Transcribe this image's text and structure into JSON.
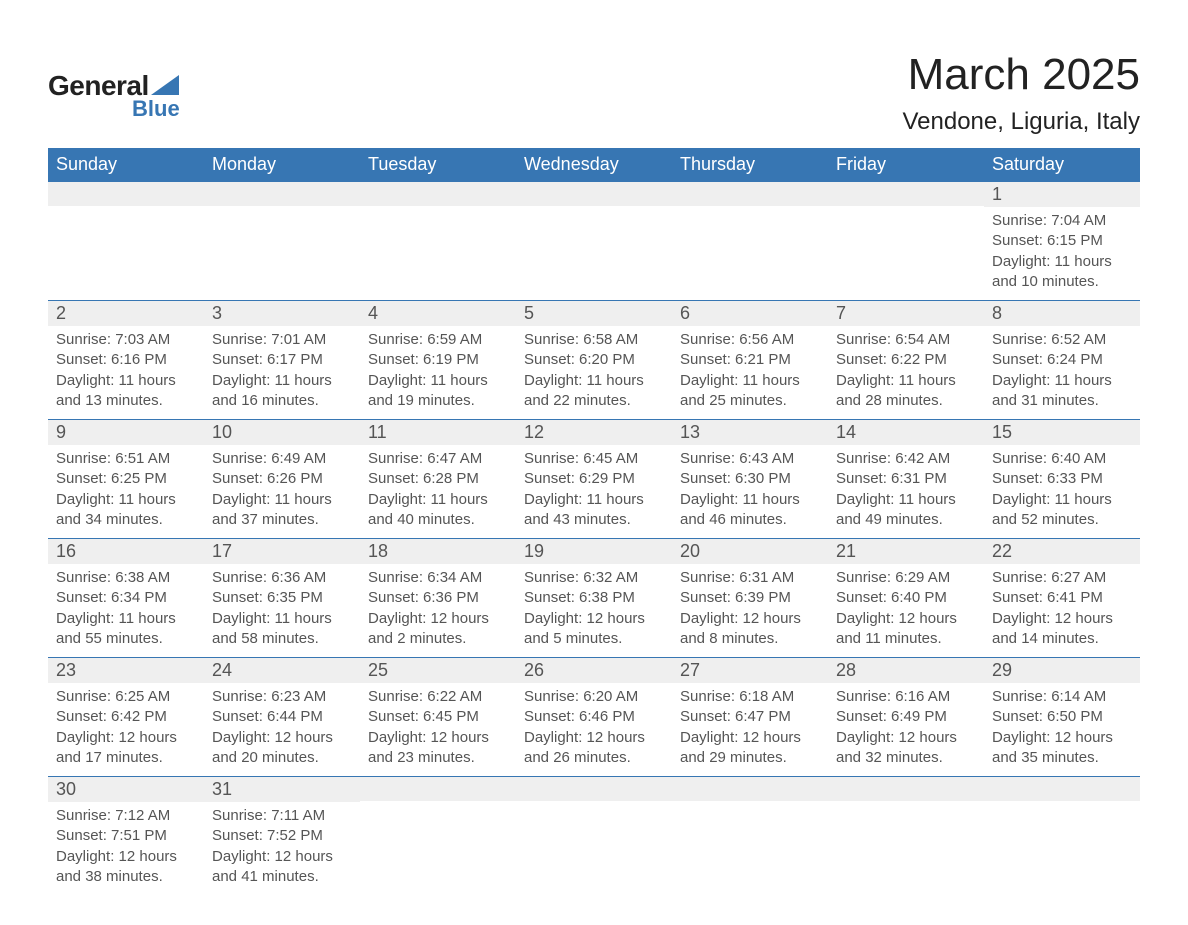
{
  "brand": {
    "general": "General",
    "blue": "Blue",
    "triangle_color": "#3776b3"
  },
  "title": "March 2025",
  "location": "Vendone, Liguria, Italy",
  "colors": {
    "header_bg": "#3776b3",
    "header_text": "#ffffff",
    "dayhead_bg": "#efefef",
    "text": "#555555",
    "row_border": "#3776b3",
    "page_bg": "#ffffff"
  },
  "typography": {
    "title_fontsize": 44,
    "location_fontsize": 24,
    "weekday_fontsize": 18,
    "daynum_fontsize": 18,
    "body_fontsize": 15
  },
  "weekdays": [
    "Sunday",
    "Monday",
    "Tuesday",
    "Wednesday",
    "Thursday",
    "Friday",
    "Saturday"
  ],
  "weeks": [
    [
      {
        "empty": true
      },
      {
        "empty": true
      },
      {
        "empty": true
      },
      {
        "empty": true
      },
      {
        "empty": true
      },
      {
        "empty": true
      },
      {
        "day": "1",
        "sunrise": "Sunrise: 7:04 AM",
        "sunset": "Sunset: 6:15 PM",
        "d1": "Daylight: 11 hours",
        "d2": "and 10 minutes."
      }
    ],
    [
      {
        "day": "2",
        "sunrise": "Sunrise: 7:03 AM",
        "sunset": "Sunset: 6:16 PM",
        "d1": "Daylight: 11 hours",
        "d2": "and 13 minutes."
      },
      {
        "day": "3",
        "sunrise": "Sunrise: 7:01 AM",
        "sunset": "Sunset: 6:17 PM",
        "d1": "Daylight: 11 hours",
        "d2": "and 16 minutes."
      },
      {
        "day": "4",
        "sunrise": "Sunrise: 6:59 AM",
        "sunset": "Sunset: 6:19 PM",
        "d1": "Daylight: 11 hours",
        "d2": "and 19 minutes."
      },
      {
        "day": "5",
        "sunrise": "Sunrise: 6:58 AM",
        "sunset": "Sunset: 6:20 PM",
        "d1": "Daylight: 11 hours",
        "d2": "and 22 minutes."
      },
      {
        "day": "6",
        "sunrise": "Sunrise: 6:56 AM",
        "sunset": "Sunset: 6:21 PM",
        "d1": "Daylight: 11 hours",
        "d2": "and 25 minutes."
      },
      {
        "day": "7",
        "sunrise": "Sunrise: 6:54 AM",
        "sunset": "Sunset: 6:22 PM",
        "d1": "Daylight: 11 hours",
        "d2": "and 28 minutes."
      },
      {
        "day": "8",
        "sunrise": "Sunrise: 6:52 AM",
        "sunset": "Sunset: 6:24 PM",
        "d1": "Daylight: 11 hours",
        "d2": "and 31 minutes."
      }
    ],
    [
      {
        "day": "9",
        "sunrise": "Sunrise: 6:51 AM",
        "sunset": "Sunset: 6:25 PM",
        "d1": "Daylight: 11 hours",
        "d2": "and 34 minutes."
      },
      {
        "day": "10",
        "sunrise": "Sunrise: 6:49 AM",
        "sunset": "Sunset: 6:26 PM",
        "d1": "Daylight: 11 hours",
        "d2": "and 37 minutes."
      },
      {
        "day": "11",
        "sunrise": "Sunrise: 6:47 AM",
        "sunset": "Sunset: 6:28 PM",
        "d1": "Daylight: 11 hours",
        "d2": "and 40 minutes."
      },
      {
        "day": "12",
        "sunrise": "Sunrise: 6:45 AM",
        "sunset": "Sunset: 6:29 PM",
        "d1": "Daylight: 11 hours",
        "d2": "and 43 minutes."
      },
      {
        "day": "13",
        "sunrise": "Sunrise: 6:43 AM",
        "sunset": "Sunset: 6:30 PM",
        "d1": "Daylight: 11 hours",
        "d2": "and 46 minutes."
      },
      {
        "day": "14",
        "sunrise": "Sunrise: 6:42 AM",
        "sunset": "Sunset: 6:31 PM",
        "d1": "Daylight: 11 hours",
        "d2": "and 49 minutes."
      },
      {
        "day": "15",
        "sunrise": "Sunrise: 6:40 AM",
        "sunset": "Sunset: 6:33 PM",
        "d1": "Daylight: 11 hours",
        "d2": "and 52 minutes."
      }
    ],
    [
      {
        "day": "16",
        "sunrise": "Sunrise: 6:38 AM",
        "sunset": "Sunset: 6:34 PM",
        "d1": "Daylight: 11 hours",
        "d2": "and 55 minutes."
      },
      {
        "day": "17",
        "sunrise": "Sunrise: 6:36 AM",
        "sunset": "Sunset: 6:35 PM",
        "d1": "Daylight: 11 hours",
        "d2": "and 58 minutes."
      },
      {
        "day": "18",
        "sunrise": "Sunrise: 6:34 AM",
        "sunset": "Sunset: 6:36 PM",
        "d1": "Daylight: 12 hours",
        "d2": "and 2 minutes."
      },
      {
        "day": "19",
        "sunrise": "Sunrise: 6:32 AM",
        "sunset": "Sunset: 6:38 PM",
        "d1": "Daylight: 12 hours",
        "d2": "and 5 minutes."
      },
      {
        "day": "20",
        "sunrise": "Sunrise: 6:31 AM",
        "sunset": "Sunset: 6:39 PM",
        "d1": "Daylight: 12 hours",
        "d2": "and 8 minutes."
      },
      {
        "day": "21",
        "sunrise": "Sunrise: 6:29 AM",
        "sunset": "Sunset: 6:40 PM",
        "d1": "Daylight: 12 hours",
        "d2": "and 11 minutes."
      },
      {
        "day": "22",
        "sunrise": "Sunrise: 6:27 AM",
        "sunset": "Sunset: 6:41 PM",
        "d1": "Daylight: 12 hours",
        "d2": "and 14 minutes."
      }
    ],
    [
      {
        "day": "23",
        "sunrise": "Sunrise: 6:25 AM",
        "sunset": "Sunset: 6:42 PM",
        "d1": "Daylight: 12 hours",
        "d2": "and 17 minutes."
      },
      {
        "day": "24",
        "sunrise": "Sunrise: 6:23 AM",
        "sunset": "Sunset: 6:44 PM",
        "d1": "Daylight: 12 hours",
        "d2": "and 20 minutes."
      },
      {
        "day": "25",
        "sunrise": "Sunrise: 6:22 AM",
        "sunset": "Sunset: 6:45 PM",
        "d1": "Daylight: 12 hours",
        "d2": "and 23 minutes."
      },
      {
        "day": "26",
        "sunrise": "Sunrise: 6:20 AM",
        "sunset": "Sunset: 6:46 PM",
        "d1": "Daylight: 12 hours",
        "d2": "and 26 minutes."
      },
      {
        "day": "27",
        "sunrise": "Sunrise: 6:18 AM",
        "sunset": "Sunset: 6:47 PM",
        "d1": "Daylight: 12 hours",
        "d2": "and 29 minutes."
      },
      {
        "day": "28",
        "sunrise": "Sunrise: 6:16 AM",
        "sunset": "Sunset: 6:49 PM",
        "d1": "Daylight: 12 hours",
        "d2": "and 32 minutes."
      },
      {
        "day": "29",
        "sunrise": "Sunrise: 6:14 AM",
        "sunset": "Sunset: 6:50 PM",
        "d1": "Daylight: 12 hours",
        "d2": "and 35 minutes."
      }
    ],
    [
      {
        "day": "30",
        "sunrise": "Sunrise: 7:12 AM",
        "sunset": "Sunset: 7:51 PM",
        "d1": "Daylight: 12 hours",
        "d2": "and 38 minutes."
      },
      {
        "day": "31",
        "sunrise": "Sunrise: 7:11 AM",
        "sunset": "Sunset: 7:52 PM",
        "d1": "Daylight: 12 hours",
        "d2": "and 41 minutes."
      },
      {
        "empty": true
      },
      {
        "empty": true
      },
      {
        "empty": true
      },
      {
        "empty": true
      },
      {
        "empty": true
      }
    ]
  ]
}
